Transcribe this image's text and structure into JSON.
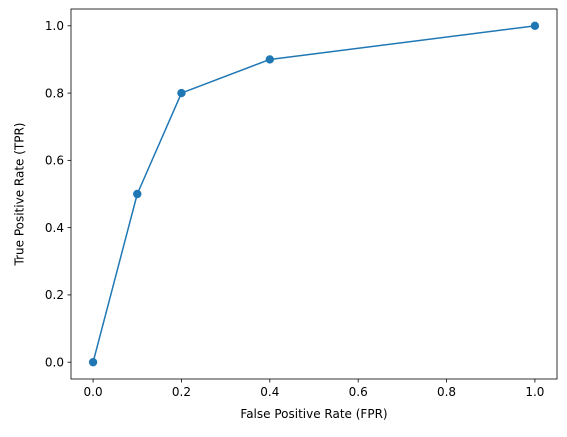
{
  "chart_data": {
    "type": "line",
    "title": "",
    "xlabel": "False Positive Rate (FPR)",
    "ylabel": "True Positive Rate (TPR)",
    "xlim": [
      -0.05,
      1.05
    ],
    "ylim": [
      -0.05,
      1.05
    ],
    "grid": false,
    "x_ticks": [
      "0.0",
      "0.2",
      "0.4",
      "0.6",
      "0.8",
      "1.0"
    ],
    "y_ticks": [
      "0.0",
      "0.2",
      "0.4",
      "0.6",
      "0.8",
      "1.0"
    ],
    "series": [
      {
        "color": "#1f77b4",
        "marker": "circle",
        "x": [
          0.0,
          0.1,
          0.2,
          0.4,
          1.0
        ],
        "y": [
          0.0,
          0.5,
          0.8,
          0.9,
          1.0
        ]
      }
    ]
  }
}
